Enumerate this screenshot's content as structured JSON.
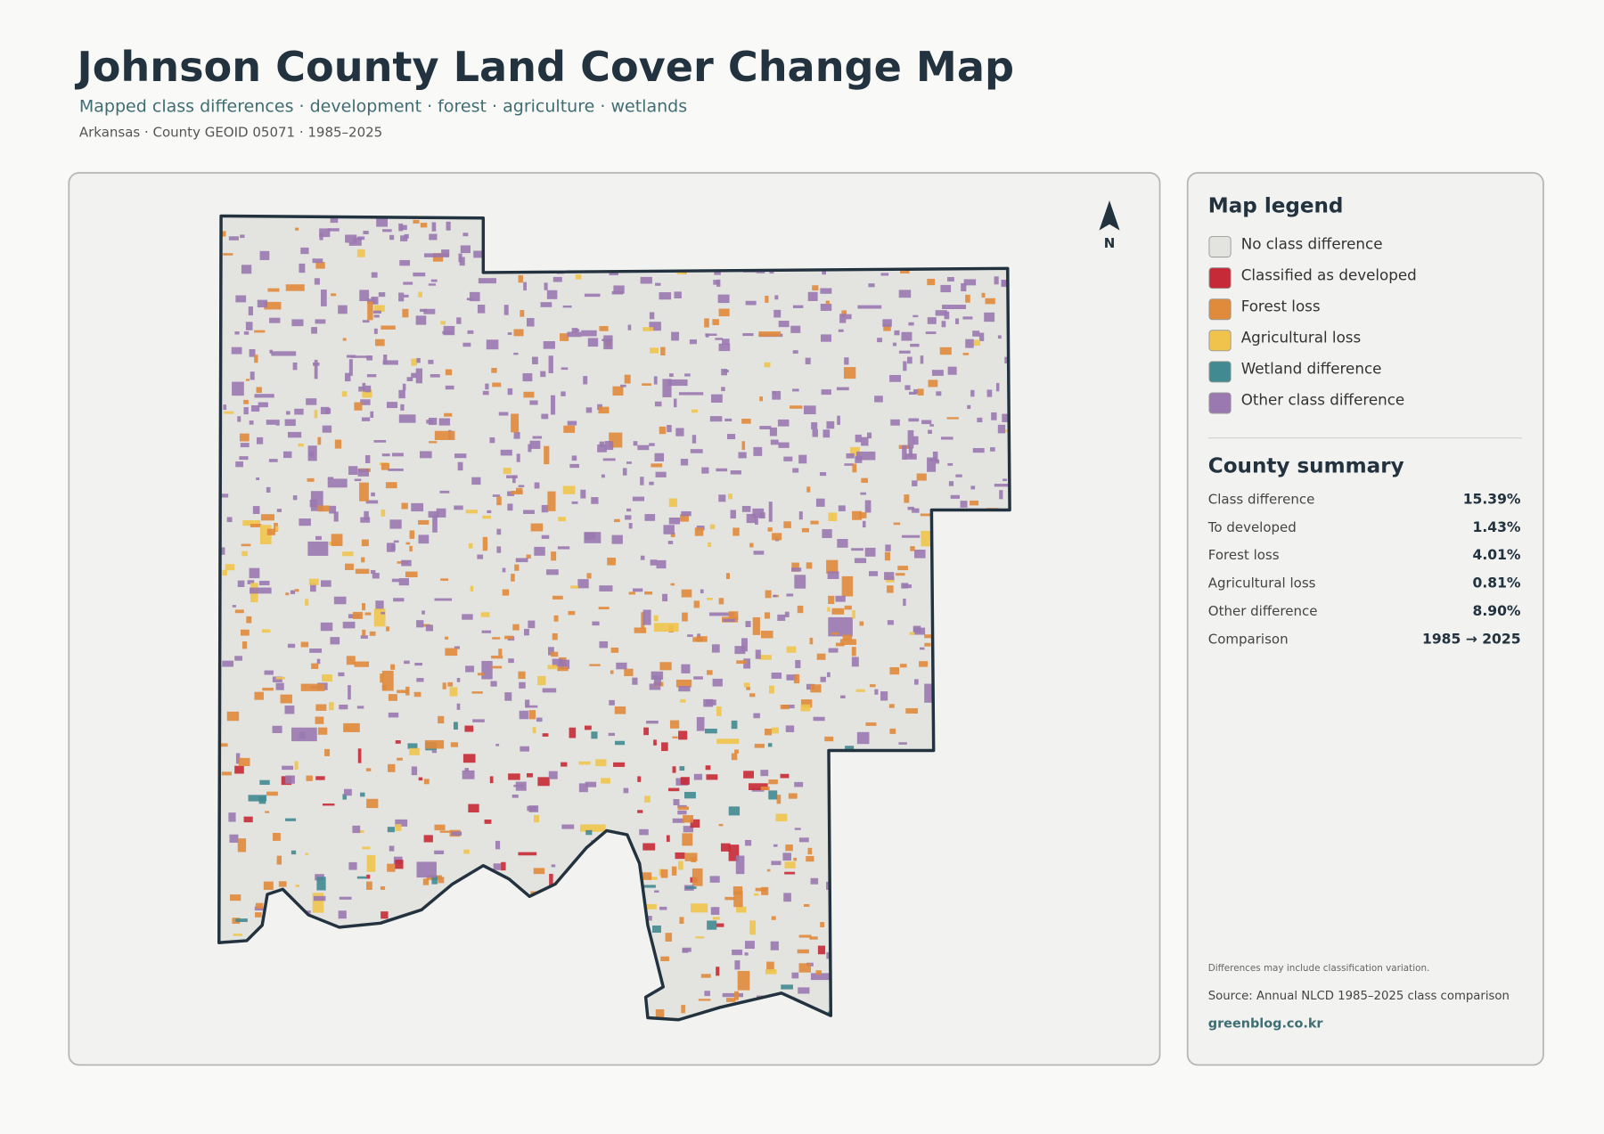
{
  "header": {
    "title": "Johnson County Land Cover Change Map",
    "subtitle": "Mapped class differences · development · forest · agriculture · wetlands",
    "meta": "Arkansas · County GEOID 05071 · 1985–2025"
  },
  "map": {
    "north_label": "N"
  },
  "legend": {
    "title": "Map legend",
    "items": [
      {
        "label": "No class difference",
        "color": "#e3e3e0"
      },
      {
        "label": "Classified as developed",
        "color": "#c62a36"
      },
      {
        "label": "Forest loss",
        "color": "#e08a3c"
      },
      {
        "label": "Agricultural loss",
        "color": "#f0c44c"
      },
      {
        "label": "Wetland difference",
        "color": "#418a92"
      },
      {
        "label": "Other class difference",
        "color": "#9a78b0"
      }
    ]
  },
  "summary": {
    "title": "County summary",
    "rows": [
      [
        "Class difference",
        "15.39%"
      ],
      [
        "To developed",
        "1.43%"
      ],
      [
        "Forest loss",
        "4.01%"
      ],
      [
        "Agricultural loss",
        "0.81%"
      ],
      [
        "Other difference",
        "8.90%"
      ],
      [
        "Comparison",
        "1985 → 2025"
      ]
    ]
  },
  "footer": {
    "note": "Differences may include classification variation.",
    "source": "Source: Annual NLCD 1985–2025 class comparison",
    "site": "greenblog.co.kr"
  }
}
